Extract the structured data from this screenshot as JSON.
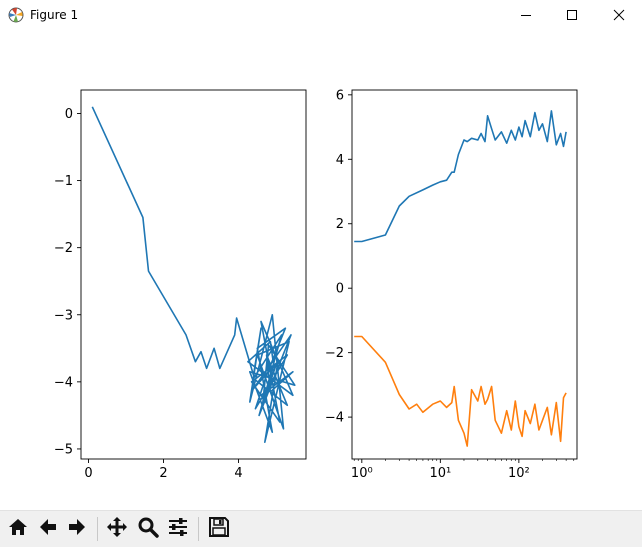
{
  "window": {
    "title": "Figure 1",
    "icon": "matplotlib-logo-icon",
    "controls": [
      "minimize-icon",
      "maximize-icon",
      "close-icon"
    ]
  },
  "toolbar": {
    "buttons": [
      "home-icon",
      "back-arrow-icon",
      "forward-arrow-icon",
      "pan-icon",
      "zoom-icon",
      "configure-subplots-icon",
      "save-icon"
    ]
  },
  "chart_data": [
    {
      "type": "line",
      "title": "",
      "xlabel": "",
      "ylabel": "",
      "xlim": [
        -0.2,
        5.8
      ],
      "ylim": [
        -5.15,
        0.35
      ],
      "xticks": [
        0,
        2,
        4
      ],
      "xtick_labels": [
        "0",
        "2",
        "4"
      ],
      "yticks": [
        0,
        -1,
        -2,
        -3,
        -4,
        -5
      ],
      "ytick_labels": [
        "0",
        "−1",
        "−2",
        "−3",
        "−4",
        "−5"
      ],
      "grid": false,
      "series": [
        {
          "color": "#1f77b4",
          "x": [
            0.1,
            1.45,
            1.6,
            2.6,
            2.85,
            3.0,
            3.15,
            3.35,
            3.5,
            3.9,
            3.95,
            4.4,
            4.6,
            4.3,
            4.9,
            5.2,
            4.5,
            5.35,
            4.7,
            5.05,
            4.4,
            5.4,
            4.55,
            4.95,
            4.85,
            4.25,
            5.45,
            4.6,
            5.1,
            4.35,
            5.3,
            4.45,
            4.75,
            5.25,
            4.5,
            4.9,
            4.3,
            5.5,
            4.8,
            4.65,
            5.0,
            4.55,
            5.15,
            4.4,
            5.3,
            4.75,
            4.85,
            5.45,
            4.6
          ],
          "y": [
            0.1,
            -1.55,
            -2.35,
            -3.3,
            -3.7,
            -3.55,
            -3.8,
            -3.5,
            -3.8,
            -3.3,
            -3.05,
            -3.9,
            -3.2,
            -4.3,
            -3.0,
            -4.7,
            -3.6,
            -3.4,
            -4.9,
            -3.7,
            -4.1,
            -3.3,
            -4.5,
            -3.8,
            -3.4,
            -3.7,
            -4.2,
            -3.1,
            -4.6,
            -4.0,
            -3.6,
            -4.4,
            -3.9,
            -3.2,
            -3.5,
            -4.75,
            -3.85,
            -4.05,
            -3.45,
            -4.3,
            -3.75,
            -4.5,
            -3.3,
            -3.95,
            -4.35,
            -3.6,
            -4.15,
            -3.85,
            -4.2
          ]
        }
      ]
    },
    {
      "type": "line",
      "title": "",
      "xlabel": "",
      "ylabel": "",
      "xscale": "log",
      "xlim": [
        0.75,
        550
      ],
      "ylim": [
        -5.3,
        6.15
      ],
      "xticks": [
        1,
        10,
        100
      ],
      "xtick_labels": [
        "10⁰",
        "10¹",
        "10²"
      ],
      "yticks": [
        6,
        4,
        2,
        0,
        -2,
        -4
      ],
      "ytick_labels": [
        "6",
        "4",
        "2",
        "0",
        "−2",
        "−4"
      ],
      "grid": false,
      "series": [
        {
          "color": "#1f77b4",
          "x": [
            0.8,
            1,
            2,
            3,
            4,
            6,
            8,
            10,
            12,
            14,
            15,
            17,
            20,
            22,
            25,
            30,
            33,
            37,
            40,
            45,
            50,
            60,
            70,
            80,
            90,
            100,
            110,
            120,
            140,
            160,
            180,
            200,
            230,
            260,
            300,
            340,
            370,
            400
          ],
          "y": [
            1.45,
            1.45,
            1.65,
            2.55,
            2.85,
            3.05,
            3.2,
            3.3,
            3.35,
            3.6,
            3.6,
            4.15,
            4.6,
            4.55,
            4.65,
            4.6,
            4.8,
            4.55,
            5.35,
            4.95,
            4.6,
            4.85,
            4.5,
            4.9,
            4.6,
            5.0,
            4.7,
            5.2,
            4.7,
            5.45,
            4.9,
            5.1,
            4.55,
            5.5,
            4.45,
            4.8,
            4.4,
            4.85
          ]
        },
        {
          "color": "#ff7f0e",
          "x": [
            0.8,
            1,
            2,
            3,
            4,
            5,
            6,
            8,
            10,
            12,
            14,
            15,
            17,
            20,
            22,
            25,
            30,
            33,
            37,
            40,
            45,
            50,
            60,
            70,
            80,
            90,
            100,
            110,
            120,
            140,
            160,
            180,
            200,
            230,
            260,
            300,
            340,
            370,
            400
          ],
          "y": [
            -1.5,
            -1.5,
            -2.3,
            -3.3,
            -3.75,
            -3.6,
            -3.85,
            -3.6,
            -3.5,
            -3.7,
            -3.55,
            -3.05,
            -4.1,
            -4.5,
            -4.9,
            -3.15,
            -3.5,
            -3.05,
            -3.6,
            -3.45,
            -3.05,
            -4.1,
            -4.5,
            -3.8,
            -4.4,
            -3.5,
            -4.3,
            -4.6,
            -3.8,
            -4.2,
            -3.6,
            -4.4,
            -4.1,
            -3.7,
            -4.55,
            -3.55,
            -4.75,
            -3.4,
            -3.25
          ]
        }
      ]
    }
  ]
}
